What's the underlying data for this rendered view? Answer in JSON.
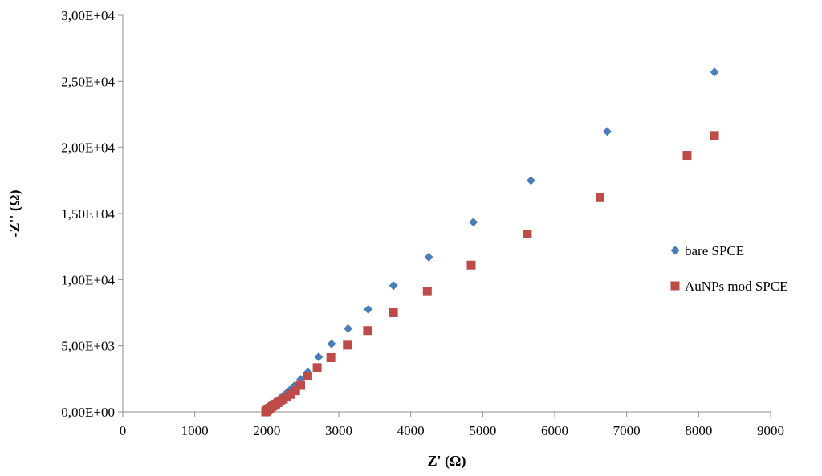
{
  "chart_data": {
    "type": "scatter",
    "title": "",
    "xlabel": "Z' (Ω)",
    "ylabel": "-Z'' (Ω)",
    "xlim": [
      0,
      9000
    ],
    "ylim": [
      0,
      30000
    ],
    "x_ticks": [
      "0",
      "1000",
      "2000",
      "3000",
      "4000",
      "5000",
      "6000",
      "7000",
      "8000",
      "9000"
    ],
    "y_ticks": [
      "0,00E+00",
      "5,00E+03",
      "1,00E+04",
      "1,50E+04",
      "2,00E+04",
      "2,50E+04",
      "3,00E+04"
    ],
    "grid": false,
    "legend_position": "right",
    "series": [
      {
        "name": "bare SPCE",
        "marker": "diamond",
        "color": "#4a7ebb",
        "x": [
          1985,
          1992,
          2000,
          2010,
          2022,
          2036,
          2052,
          2072,
          2095,
          2120,
          2150,
          2185,
          2225,
          2270,
          2320,
          2390,
          2470,
          2570,
          2720,
          2900,
          3130,
          3410,
          3760,
          4250,
          4870,
          5670,
          6730,
          8220
        ],
        "y": [
          0,
          40,
          90,
          150,
          220,
          300,
          390,
          490,
          600,
          720,
          860,
          1020,
          1200,
          1410,
          1650,
          2000,
          2450,
          3000,
          4150,
          5150,
          6300,
          7750,
          9550,
          11700,
          14350,
          17500,
          21200,
          25700
        ]
      },
      {
        "name": "AuNPs mod SPCE",
        "marker": "square",
        "color": "#be4b48",
        "x": [
          1985,
          1992,
          2000,
          2012,
          2025,
          2040,
          2058,
          2078,
          2100,
          2125,
          2155,
          2190,
          2230,
          2275,
          2330,
          2400,
          2470,
          2570,
          2700,
          2890,
          3120,
          3400,
          3760,
          4230,
          4840,
          5620,
          6630,
          7840,
          8220
        ],
        "y": [
          0,
          40,
          90,
          140,
          200,
          270,
          340,
          420,
          500,
          590,
          700,
          820,
          960,
          1120,
          1320,
          1600,
          2000,
          2700,
          3350,
          4100,
          5050,
          6150,
          7500,
          9100,
          11100,
          13450,
          16200,
          19400,
          20900
        ]
      }
    ]
  }
}
